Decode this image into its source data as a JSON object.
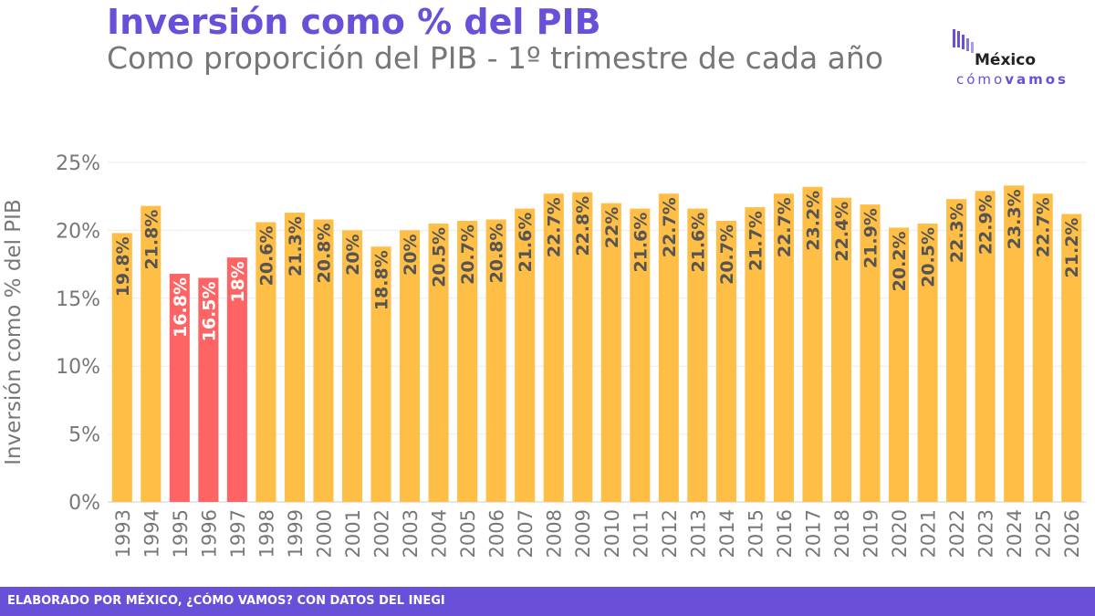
{
  "header": {
    "title": "Inversión como % del PIB",
    "subtitle": "Como proporción del PIB - 1º trimestre de cada año"
  },
  "logo": {
    "name": "México",
    "tagline_light": "cómo",
    "tagline_bold": "vamos"
  },
  "footer": {
    "text": "ELABORADO POR MÉXICO, ¿CÓMO VAMOS? CON DATOS DEL INEGI"
  },
  "colors": {
    "title": "#6A4FD8",
    "bar_default": "#FFBE45",
    "bar_highlight": "#FF6464",
    "label_dark": "#555555",
    "label_light": "#ffffff",
    "footer": "#6A4FD8"
  },
  "chart_data": {
    "type": "bar",
    "ylabel": "Inversión como % del PIB",
    "ylim": [
      0,
      25
    ],
    "yticks": [
      "0%",
      "5%",
      "10%",
      "15%",
      "20%",
      "25%"
    ],
    "grid": true,
    "categories": [
      "1993",
      "1994",
      "1995",
      "1996",
      "1997",
      "1998",
      "1999",
      "2000",
      "2001",
      "2002",
      "2003",
      "2004",
      "2005",
      "2006",
      "2007",
      "2008",
      "2009",
      "2010",
      "2011",
      "2012",
      "2013",
      "2014",
      "2015",
      "2016",
      "2017",
      "2018",
      "2019",
      "2020",
      "2021",
      "2022",
      "2023",
      "2024",
      "2025",
      "2026"
    ],
    "values": [
      19.8,
      21.8,
      16.8,
      16.5,
      18,
      20.6,
      21.3,
      20.8,
      20,
      18.8,
      20,
      20.5,
      20.7,
      20.8,
      21.6,
      22.7,
      22.8,
      22,
      21.6,
      22.7,
      21.6,
      20.7,
      21.7,
      22.7,
      23.2,
      22.4,
      21.9,
      20.2,
      20.5,
      22.3,
      22.9,
      23.3,
      22.7,
      21.2
    ],
    "labels": [
      "19.8%",
      "21.8%",
      "16.8%",
      "16.5%",
      "18%",
      "20.6%",
      "21.3%",
      "20.8%",
      "20%",
      "18.8%",
      "20%",
      "20.5%",
      "20.7%",
      "20.8%",
      "21.6%",
      "22.7%",
      "22.8%",
      "22%",
      "21.6%",
      "22.7%",
      "21.6%",
      "20.7%",
      "21.7%",
      "22.7%",
      "23.2%",
      "22.4%",
      "21.9%",
      "20.2%",
      "20.5%",
      "22.3%",
      "22.9%",
      "23.3%",
      "22.7%",
      "21.2%"
    ],
    "highlighted": [
      "1995",
      "1996",
      "1997"
    ]
  }
}
